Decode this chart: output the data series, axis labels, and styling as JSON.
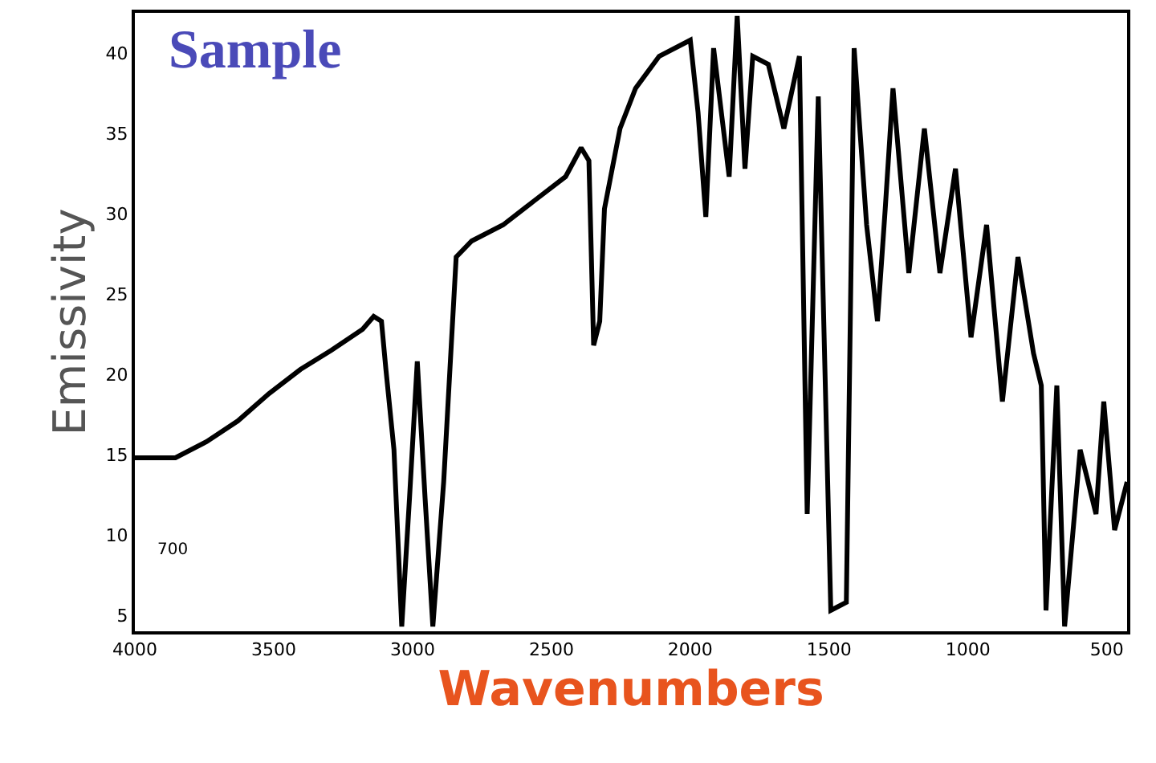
{
  "chart_data": {
    "type": "line",
    "xlabel": "Wavenumbers",
    "ylabel": "Emissivity",
    "annotations": [
      "Sample",
      "700"
    ],
    "x": [
      4000,
      3854,
      3742,
      3629,
      3517,
      3404,
      3292,
      3180,
      3140,
      3112,
      3096,
      3067,
      3039,
      3011,
      2983,
      2955,
      2927,
      2888,
      2843,
      2787,
      2674,
      2562,
      2449,
      2393,
      2365,
      2348,
      2326,
      2309,
      2253,
      2197,
      2112,
      2000,
      1972,
      1944,
      1916,
      1860,
      1831,
      1803,
      1775,
      1719,
      1663,
      1607,
      1579,
      1539,
      1494,
      1438,
      1410,
      1365,
      1326,
      1298,
      1270,
      1213,
      1157,
      1101,
      1045,
      989,
      933,
      876,
      820,
      764,
      736,
      719,
      680,
      652,
      596,
      539,
      511,
      472,
      427
    ],
    "series": [
      {
        "color": "#000000",
        "values": [
          14.8,
          14.8,
          15.8,
          17.1,
          18.8,
          20.3,
          21.5,
          22.8,
          23.6,
          23.3,
          20.3,
          15.3,
          4.3,
          12.3,
          20.8,
          12.3,
          4.3,
          13.3,
          27.3,
          28.3,
          29.3,
          30.8,
          32.3,
          34.1,
          33.3,
          21.8,
          23.3,
          30.3,
          35.3,
          37.8,
          39.8,
          40.8,
          36.3,
          29.8,
          40.3,
          32.3,
          42.3,
          32.8,
          39.8,
          39.3,
          35.3,
          39.8,
          11.3,
          37.3,
          5.3,
          5.8,
          40.3,
          29.3,
          23.3,
          30.3,
          37.8,
          26.3,
          35.3,
          26.3,
          32.8,
          22.3,
          29.3,
          18.3,
          27.3,
          21.3,
          19.3,
          5.3,
          19.3,
          4.3,
          15.3,
          11.3,
          18.3,
          10.3,
          13.3
        ]
      }
    ],
    "xlim": [
      4000,
      427
    ],
    "ylim": [
      4,
      42.5
    ],
    "xticks": [
      4000,
      3500,
      3000,
      2500,
      2000,
      1500,
      1000,
      500
    ],
    "yticks": [
      5,
      10,
      15,
      20,
      25,
      30,
      35,
      40
    ],
    "grid": false,
    "marker": "none",
    "line_style": "solid"
  }
}
